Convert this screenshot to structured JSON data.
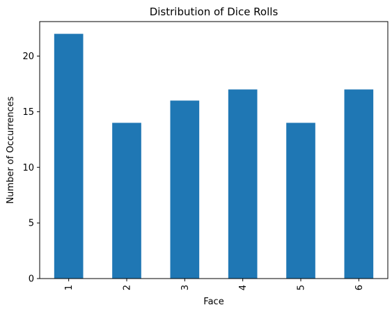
{
  "chart_data": {
    "type": "bar",
    "title": "Distribution of Dice Rolls",
    "xlabel": "Face",
    "ylabel": "Number of Occurrences",
    "categories": [
      "1",
      "2",
      "3",
      "4",
      "5",
      "6"
    ],
    "values": [
      22,
      14,
      16,
      17,
      14,
      17
    ],
    "ylim": [
      0,
      23.1
    ],
    "yticks": [
      0,
      5,
      10,
      15,
      20
    ],
    "bar_color": "#1f77b4",
    "grid": false,
    "legend": false
  }
}
